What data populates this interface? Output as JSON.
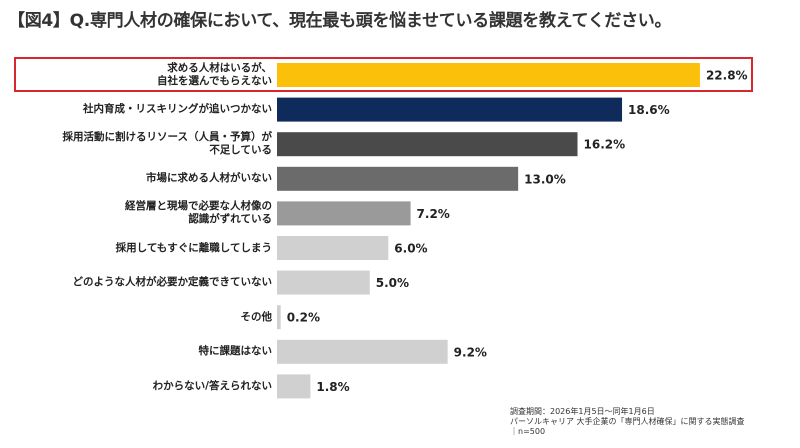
{
  "title": "【図4】Q.専門人材の確保において、現在最も頭を悩ませている課題を教えてください。",
  "chart_data": {
    "type": "bar",
    "orientation": "horizontal",
    "categories": [
      "求める人材はいるが、\n自社を選んでもらえない",
      "社内育成・リスキリングが追いつかない",
      "採用活動に割けるリソース（人員・予算）が\n不足している",
      "市場に求める人材がいない",
      "経営層と現場で必要な人材像の\n認識がずれている",
      "採用してもすぐに離職してしまう",
      "どのような人材が必要か定義できていない",
      "その他",
      "特に課題はない",
      "わからない/答えられない"
    ],
    "values": [
      22.8,
      18.6,
      16.2,
      13.0,
      7.2,
      6.0,
      5.0,
      0.2,
      9.2,
      1.8
    ],
    "value_labels": [
      "22.8%",
      "18.6%",
      "16.2%",
      "13.0%",
      "7.2%",
      "6.0%",
      "5.0%",
      "0.2%",
      "9.2%",
      "1.8%"
    ],
    "colors": [
      "#FBC10A",
      "#0F2B5B",
      "#4A4A4A",
      "#6B6B6B",
      "#9A9A9A",
      "#D0D0D0",
      "#D0D0D0",
      "#D0D0D0",
      "#D0D0D0",
      "#D0D0D0"
    ],
    "highlight_index": 0,
    "highlight_color": "#D7282F",
    "grid": false
  },
  "note": {
    "period": "調査期間：2026年1月5日〜同年1月6日",
    "source": "パーソルキャリア 大手企業の「専門人材確保」に関する実態調査",
    "n": "｜n=500"
  }
}
